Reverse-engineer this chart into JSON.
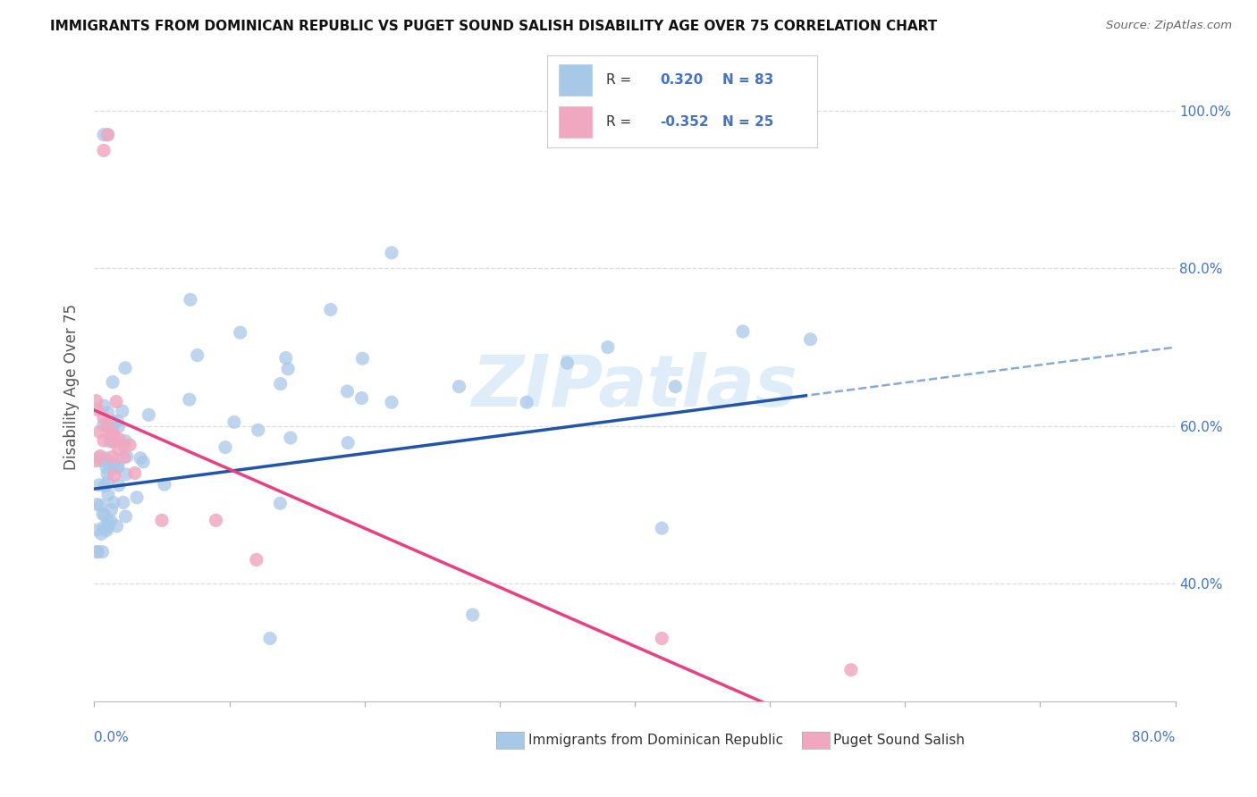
{
  "title": "IMMIGRANTS FROM DOMINICAN REPUBLIC VS PUGET SOUND SALISH DISABILITY AGE OVER 75 CORRELATION CHART",
  "source": "Source: ZipAtlas.com",
  "ylabel": "Disability Age Over 75",
  "watermark": "ZIPatlas",
  "blue_scatter": "#a8c8e8",
  "pink_scatter": "#f0a8c0",
  "trend_blue": "#2255aa",
  "trend_pink": "#e84080",
  "trend_blue_dashed": "#88aad8",
  "background_color": "#ffffff",
  "grid_color": "#dddddd",
  "xlim": [
    0.0,
    0.8
  ],
  "ylim": [
    0.25,
    1.05
  ],
  "y_tick_vals": [
    0.4,
    0.6,
    0.8,
    1.0
  ],
  "right_tick_labels": [
    "40.0%",
    "60.0%",
    "80.0%",
    "100.0%"
  ],
  "right_tick_color": "#4472c4",
  "blue_r": "0.320",
  "blue_n": "83",
  "pink_r": "-0.352",
  "pink_n": "25",
  "legend_text_color": "#4472c4",
  "legend_label_color": "#333333"
}
